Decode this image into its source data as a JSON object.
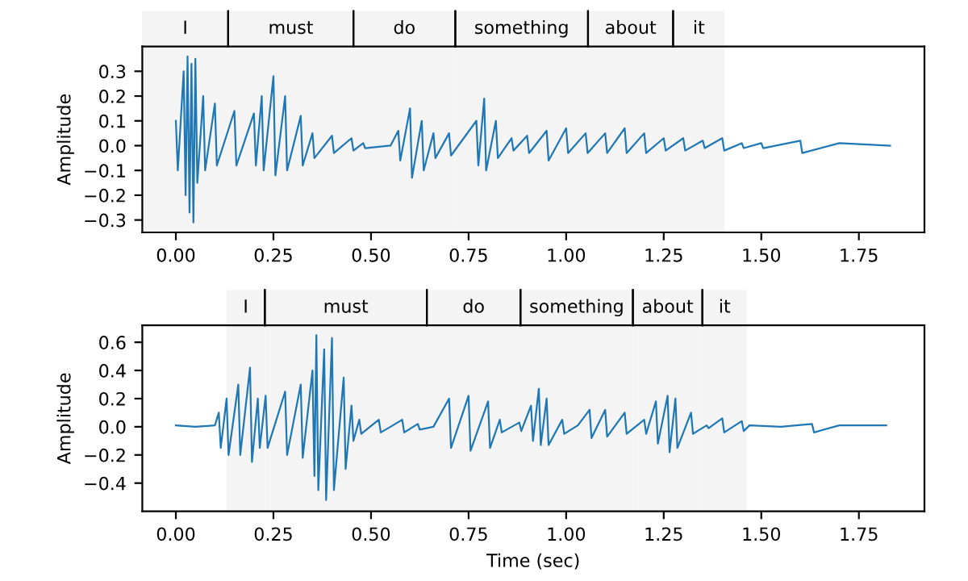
{
  "chart_data": [
    {
      "type": "line",
      "ylabel": "Amplitude",
      "xlim": [
        -0.086,
        1.918
      ],
      "ylim": [
        -0.35,
        0.4
      ],
      "xticks": [
        {
          "value": 0,
          "label": "0.00"
        },
        {
          "value": 0.25,
          "label": "0.25"
        },
        {
          "value": 0.5,
          "label": "0.50"
        },
        {
          "value": 0.75,
          "label": "0.75"
        },
        {
          "value": 1,
          "label": "1.00"
        },
        {
          "value": 1.25,
          "label": "1.25"
        },
        {
          "value": 1.5,
          "label": "1.50"
        },
        {
          "value": 1.75,
          "label": "1.75"
        }
      ],
      "yticks": [
        {
          "value": -0.3,
          "label": "−0.3"
        },
        {
          "value": -0.2,
          "label": "−0.2"
        },
        {
          "value": -0.1,
          "label": "−0.1"
        },
        {
          "value": 0,
          "label": "0.0"
        },
        {
          "value": 0.1,
          "label": "0.1"
        },
        {
          "value": 0.2,
          "label": "0.2"
        },
        {
          "value": 0.3,
          "label": "0.3"
        }
      ],
      "bands": [
        {
          "axis": "x",
          "from": -0.086,
          "to": 0.134,
          "label": "I",
          "color": "#f4f4f4"
        },
        {
          "axis": "x",
          "from": 0.134,
          "to": 0.455,
          "label": "must",
          "color": "#f4f4f4"
        },
        {
          "axis": "x",
          "from": 0.455,
          "to": 0.716,
          "label": "do",
          "color": "#f4f4f4"
        },
        {
          "axis": "x",
          "from": 0.716,
          "to": 1.056,
          "label": "something",
          "color": "#f4f4f4"
        },
        {
          "axis": "x",
          "from": 1.056,
          "to": 1.274,
          "label": "about",
          "color": "#f4f4f4"
        },
        {
          "axis": "x",
          "from": 1.274,
          "to": 1.406,
          "label": "it",
          "color": "#f4f4f4"
        }
      ],
      "grid": false,
      "line_style": "solid",
      "series": [
        {
          "color": "#1f77b4",
          "x": [
            0.0,
            0.005,
            0.02,
            0.025,
            0.03,
            0.035,
            0.04,
            0.045,
            0.05,
            0.055,
            0.07,
            0.075,
            0.1,
            0.105,
            0.15,
            0.155,
            0.2,
            0.205,
            0.22,
            0.225,
            0.25,
            0.255,
            0.28,
            0.285,
            0.32,
            0.325,
            0.35,
            0.355,
            0.4,
            0.405,
            0.45,
            0.455,
            0.48,
            0.485,
            0.55,
            0.57,
            0.575,
            0.6,
            0.605,
            0.63,
            0.635,
            0.66,
            0.665,
            0.7,
            0.705,
            0.77,
            0.775,
            0.79,
            0.795,
            0.82,
            0.825,
            0.86,
            0.865,
            0.9,
            0.905,
            0.95,
            0.955,
            1.0,
            1.005,
            1.05,
            1.055,
            1.1,
            1.105,
            1.15,
            1.155,
            1.2,
            1.205,
            1.25,
            1.255,
            1.3,
            1.305,
            1.35,
            1.355,
            1.4,
            1.405,
            1.45,
            1.455,
            1.5,
            1.505,
            1.6,
            1.605,
            1.7,
            1.83
          ],
          "values": [
            0.1,
            -0.1,
            0.3,
            -0.2,
            0.36,
            -0.27,
            0.33,
            -0.31,
            0.35,
            -0.15,
            0.2,
            -0.1,
            0.17,
            -0.08,
            0.14,
            -0.08,
            0.13,
            -0.08,
            0.2,
            -0.1,
            0.28,
            -0.12,
            0.2,
            -0.1,
            0.12,
            -0.08,
            0.05,
            -0.05,
            0.04,
            -0.03,
            0.03,
            -0.02,
            0.01,
            -0.01,
            0.0,
            0.06,
            -0.06,
            0.15,
            -0.13,
            0.1,
            -0.1,
            0.05,
            -0.05,
            0.05,
            -0.04,
            0.1,
            -0.08,
            0.19,
            -0.1,
            0.1,
            -0.05,
            0.03,
            -0.02,
            0.04,
            -0.03,
            0.06,
            -0.06,
            0.07,
            -0.03,
            0.05,
            -0.03,
            0.05,
            -0.03,
            0.07,
            -0.03,
            0.05,
            -0.03,
            0.03,
            -0.02,
            0.03,
            -0.02,
            0.02,
            -0.01,
            0.03,
            -0.02,
            0.01,
            -0.01,
            0.01,
            -0.01,
            0.02,
            -0.03,
            0.01,
            0.0
          ]
        }
      ]
    },
    {
      "type": "line",
      "ylabel": "Amplitude",
      "xlabel": "Time (sec)",
      "xlim": [
        -0.086,
        1.918
      ],
      "ylim": [
        -0.6,
        0.72
      ],
      "xticks": [
        {
          "value": 0,
          "label": "0.00"
        },
        {
          "value": 0.25,
          "label": "0.25"
        },
        {
          "value": 0.5,
          "label": "0.50"
        },
        {
          "value": 0.75,
          "label": "0.75"
        },
        {
          "value": 1,
          "label": "1.00"
        },
        {
          "value": 1.25,
          "label": "1.25"
        },
        {
          "value": 1.5,
          "label": "1.50"
        },
        {
          "value": 1.75,
          "label": "1.75"
        }
      ],
      "yticks": [
        {
          "value": -0.4,
          "label": "−0.4"
        },
        {
          "value": -0.2,
          "label": "−0.2"
        },
        {
          "value": 0,
          "label": "0.0"
        },
        {
          "value": 0.2,
          "label": "0.2"
        },
        {
          "value": 0.4,
          "label": "0.4"
        },
        {
          "value": 0.6,
          "label": "0.6"
        }
      ],
      "bands": [
        {
          "axis": "x",
          "from": 0.13,
          "to": 0.228,
          "label": "I",
          "color": "#f4f4f4"
        },
        {
          "axis": "x",
          "from": 0.228,
          "to": 0.643,
          "label": "must",
          "color": "#f4f4f4"
        },
        {
          "axis": "x",
          "from": 0.643,
          "to": 0.883,
          "label": "do",
          "color": "#f4f4f4"
        },
        {
          "axis": "x",
          "from": 0.883,
          "to": 1.171,
          "label": "something",
          "color": "#f4f4f4"
        },
        {
          "axis": "x",
          "from": 1.171,
          "to": 1.349,
          "label": "about",
          "color": "#f4f4f4"
        },
        {
          "axis": "x",
          "from": 1.349,
          "to": 1.463,
          "label": "it",
          "color": "#f4f4f4"
        }
      ],
      "grid": false,
      "line_style": "solid",
      "series": [
        {
          "color": "#1f77b4",
          "x": [
            0.0,
            0.05,
            0.1,
            0.11,
            0.115,
            0.13,
            0.135,
            0.16,
            0.165,
            0.19,
            0.195,
            0.21,
            0.215,
            0.23,
            0.235,
            0.28,
            0.285,
            0.32,
            0.325,
            0.35,
            0.355,
            0.36,
            0.365,
            0.38,
            0.385,
            0.4,
            0.405,
            0.43,
            0.435,
            0.45,
            0.455,
            0.47,
            0.475,
            0.52,
            0.525,
            0.55,
            0.58,
            0.585,
            0.62,
            0.625,
            0.66,
            0.7,
            0.705,
            0.75,
            0.755,
            0.8,
            0.805,
            0.83,
            0.835,
            0.88,
            0.885,
            0.91,
            0.915,
            0.93,
            0.935,
            0.95,
            0.955,
            0.99,
            0.995,
            1.03,
            1.06,
            1.065,
            1.1,
            1.105,
            1.15,
            1.155,
            1.2,
            1.205,
            1.23,
            1.235,
            1.26,
            1.265,
            1.28,
            1.285,
            1.32,
            1.325,
            1.36,
            1.365,
            1.4,
            1.405,
            1.45,
            1.455,
            1.47,
            1.55,
            1.63,
            1.635,
            1.7,
            1.82
          ],
          "values": [
            0.01,
            0.0,
            0.01,
            0.1,
            -0.15,
            0.2,
            -0.2,
            0.3,
            -0.2,
            0.42,
            -0.25,
            0.2,
            -0.15,
            0.22,
            -0.15,
            0.25,
            -0.2,
            0.3,
            -0.22,
            0.4,
            -0.35,
            0.65,
            -0.45,
            0.55,
            -0.52,
            0.63,
            -0.45,
            0.35,
            -0.3,
            0.15,
            -0.1,
            0.05,
            -0.05,
            0.05,
            -0.04,
            0.0,
            0.05,
            -0.04,
            0.02,
            -0.02,
            0.0,
            0.2,
            -0.15,
            0.22,
            -0.17,
            0.18,
            -0.15,
            0.05,
            -0.04,
            0.03,
            -0.03,
            0.15,
            -0.1,
            0.27,
            -0.13,
            0.2,
            -0.13,
            0.05,
            -0.05,
            0.01,
            0.12,
            -0.08,
            0.12,
            -0.07,
            0.1,
            -0.05,
            0.05,
            -0.05,
            0.18,
            -0.12,
            0.22,
            -0.18,
            0.2,
            -0.15,
            0.1,
            -0.05,
            0.01,
            -0.01,
            0.06,
            -0.04,
            0.04,
            -0.03,
            0.01,
            0.0,
            0.02,
            -0.04,
            0.01,
            0.01
          ]
        }
      ]
    }
  ]
}
